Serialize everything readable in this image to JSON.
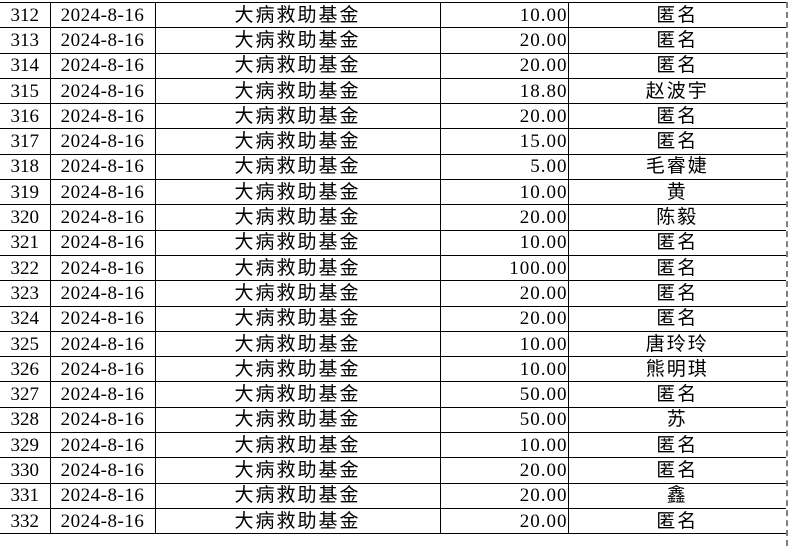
{
  "colors": {
    "background": "#ffffff",
    "text": "#000000",
    "cell_border": "#000000",
    "page_break_line": "#7f7f7f"
  },
  "table": {
    "rows": [
      {
        "index": "312",
        "date": "2024-8-16",
        "fund": "大病救助基金",
        "amount": "10.00",
        "donor": "匿名"
      },
      {
        "index": "313",
        "date": "2024-8-16",
        "fund": "大病救助基金",
        "amount": "20.00",
        "donor": "匿名"
      },
      {
        "index": "314",
        "date": "2024-8-16",
        "fund": "大病救助基金",
        "amount": "20.00",
        "donor": "匿名"
      },
      {
        "index": "315",
        "date": "2024-8-16",
        "fund": "大病救助基金",
        "amount": "18.80",
        "donor": "赵波宇"
      },
      {
        "index": "316",
        "date": "2024-8-16",
        "fund": "大病救助基金",
        "amount": "20.00",
        "donor": "匿名"
      },
      {
        "index": "317",
        "date": "2024-8-16",
        "fund": "大病救助基金",
        "amount": "15.00",
        "donor": "匿名"
      },
      {
        "index": "318",
        "date": "2024-8-16",
        "fund": "大病救助基金",
        "amount": "5.00",
        "donor": "毛睿婕"
      },
      {
        "index": "319",
        "date": "2024-8-16",
        "fund": "大病救助基金",
        "amount": "10.00",
        "donor": "黄"
      },
      {
        "index": "320",
        "date": "2024-8-16",
        "fund": "大病救助基金",
        "amount": "20.00",
        "donor": "陈毅"
      },
      {
        "index": "321",
        "date": "2024-8-16",
        "fund": "大病救助基金",
        "amount": "10.00",
        "donor": "匿名"
      },
      {
        "index": "322",
        "date": "2024-8-16",
        "fund": "大病救助基金",
        "amount": "100.00",
        "donor": "匿名"
      },
      {
        "index": "323",
        "date": "2024-8-16",
        "fund": "大病救助基金",
        "amount": "20.00",
        "donor": "匿名"
      },
      {
        "index": "324",
        "date": "2024-8-16",
        "fund": "大病救助基金",
        "amount": "20.00",
        "donor": "匿名"
      },
      {
        "index": "325",
        "date": "2024-8-16",
        "fund": "大病救助基金",
        "amount": "10.00",
        "donor": "唐玲玲"
      },
      {
        "index": "326",
        "date": "2024-8-16",
        "fund": "大病救助基金",
        "amount": "10.00",
        "donor": "熊明琪"
      },
      {
        "index": "327",
        "date": "2024-8-16",
        "fund": "大病救助基金",
        "amount": "50.00",
        "donor": "匿名"
      },
      {
        "index": "328",
        "date": "2024-8-16",
        "fund": "大病救助基金",
        "amount": "50.00",
        "donor": "苏"
      },
      {
        "index": "329",
        "date": "2024-8-16",
        "fund": "大病救助基金",
        "amount": "10.00",
        "donor": "匿名"
      },
      {
        "index": "330",
        "date": "2024-8-16",
        "fund": "大病救助基金",
        "amount": "20.00",
        "donor": "匿名"
      },
      {
        "index": "331",
        "date": "2024-8-16",
        "fund": "大病救助基金",
        "amount": "20.00",
        "donor": "鑫"
      },
      {
        "index": "332",
        "date": "2024-8-16",
        "fund": "大病救助基金",
        "amount": "20.00",
        "donor": "匿名"
      }
    ]
  }
}
